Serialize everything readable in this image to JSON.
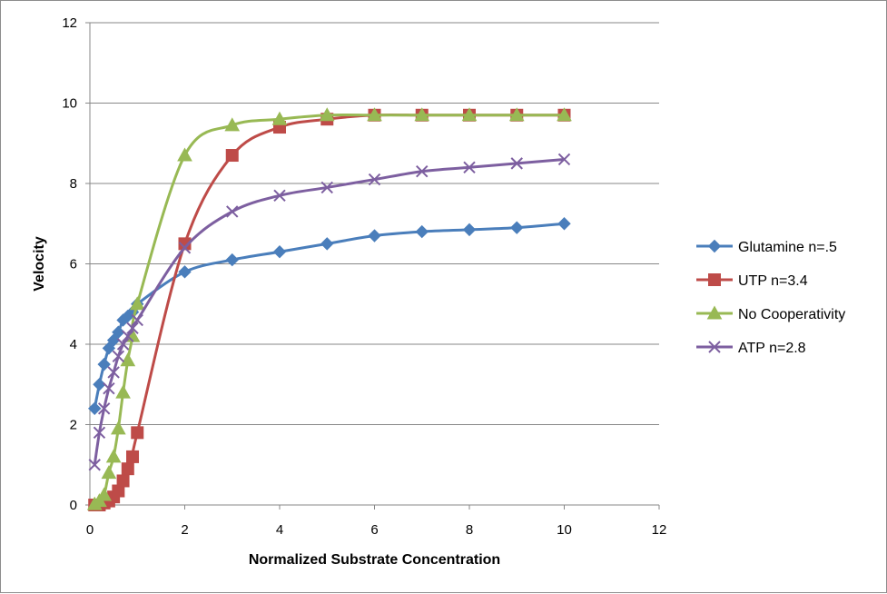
{
  "chart_data": {
    "type": "line",
    "title": "",
    "xlabel": "Normalized Substrate Concentration",
    "ylabel": "Velocity",
    "xlim": [
      0,
      12
    ],
    "ylim": [
      0,
      12
    ],
    "xticks": [
      0,
      2,
      4,
      6,
      8,
      10,
      12
    ],
    "yticks": [
      0,
      2,
      4,
      6,
      8,
      10,
      12
    ],
    "grid": "horizontal",
    "legend": "right",
    "series": [
      {
        "name": "Glutamine n=.5",
        "color": "#4a7ebb",
        "marker": "diamond",
        "x": [
          0.1,
          0.2,
          0.3,
          0.4,
          0.5,
          0.6,
          0.7,
          0.8,
          0.9,
          1,
          2,
          3,
          4,
          5,
          6,
          7,
          8,
          9,
          10
        ],
        "y": [
          2.4,
          3.0,
          3.5,
          3.9,
          4.1,
          4.3,
          4.6,
          4.7,
          4.8,
          5.0,
          5.8,
          6.1,
          6.3,
          6.5,
          6.7,
          6.8,
          6.85,
          6.9,
          7.0
        ]
      },
      {
        "name": "UTP n=3.4",
        "color": "#be4b48",
        "marker": "square",
        "x": [
          0.1,
          0.2,
          0.3,
          0.4,
          0.5,
          0.6,
          0.7,
          0.8,
          0.9,
          1,
          2,
          3,
          4,
          5,
          6,
          7,
          8,
          9,
          10
        ],
        "y": [
          0.0,
          0.0,
          0.05,
          0.1,
          0.2,
          0.35,
          0.6,
          0.9,
          1.2,
          1.8,
          6.5,
          8.7,
          9.4,
          9.6,
          9.7,
          9.7,
          9.7,
          9.7,
          9.7
        ]
      },
      {
        "name": "No Cooperativity",
        "color": "#98b954",
        "marker": "triangle",
        "x": [
          0.1,
          0.2,
          0.3,
          0.4,
          0.5,
          0.6,
          0.7,
          0.8,
          0.9,
          1,
          2,
          3,
          4,
          5,
          6,
          7,
          8,
          9,
          10
        ],
        "y": [
          0.02,
          0.1,
          0.25,
          0.8,
          1.2,
          1.9,
          2.8,
          3.6,
          4.2,
          5.0,
          8.7,
          9.45,
          9.6,
          9.7,
          9.7,
          9.7,
          9.7,
          9.7,
          9.7
        ]
      },
      {
        "name": "ATP n=2.8",
        "color": "#7d5fa0",
        "marker": "x",
        "x": [
          0.1,
          0.2,
          0.3,
          0.4,
          0.5,
          0.6,
          0.7,
          0.8,
          0.9,
          1,
          2,
          3,
          4,
          5,
          6,
          7,
          8,
          9,
          10
        ],
        "y": [
          1.0,
          1.8,
          2.4,
          2.9,
          3.3,
          3.7,
          4.0,
          4.2,
          4.4,
          4.6,
          6.4,
          7.3,
          7.7,
          7.9,
          8.1,
          8.3,
          8.4,
          8.5,
          8.6
        ]
      }
    ]
  }
}
